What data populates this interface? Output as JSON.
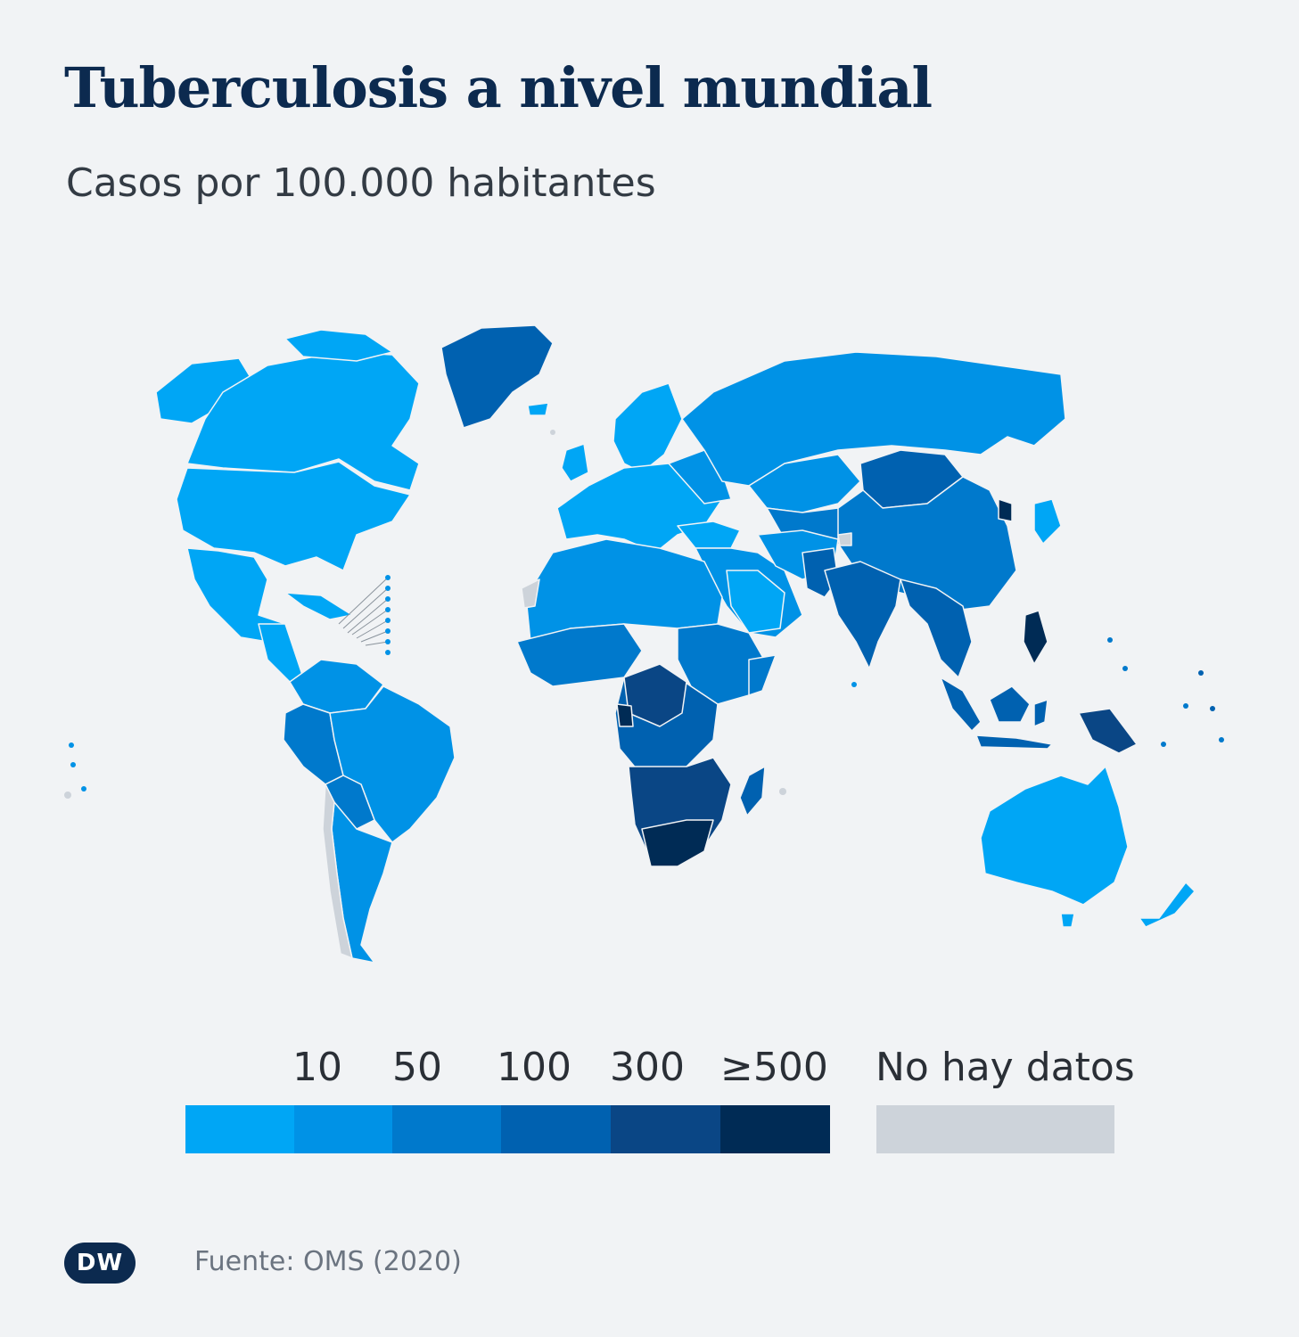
{
  "title": "Tuberculosis a nivel mundial",
  "subtitle": "Casos por 100.000 habitantes",
  "colors": {
    "c0": "#00a6f5",
    "c10": "#0092e6",
    "c50": "#0079cc",
    "c100": "#0061b0",
    "c300": "#0a4685",
    "c500": "#002b55",
    "nodata": "#cdd3da",
    "background": "#f1f3f5"
  },
  "legend": {
    "thresholds": [
      "10",
      "50",
      "100",
      "300",
      "≥500"
    ],
    "nodata_label": "No hay datos"
  },
  "source": "Fuente: OMS (2020)",
  "logo_text": "DW"
}
